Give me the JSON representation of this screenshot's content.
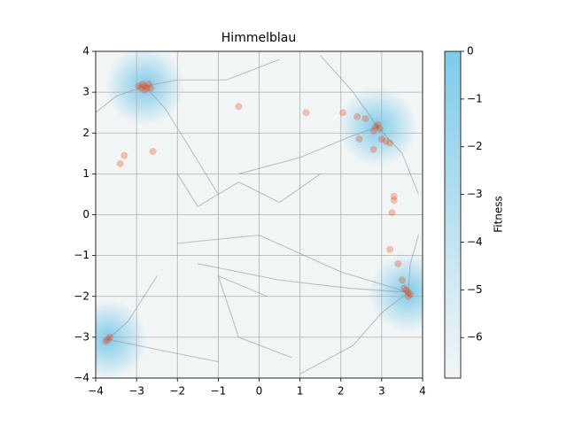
{
  "chart_data": {
    "type": "scatter",
    "title": "Himmelblau",
    "colorbar_label": "Fitness",
    "xlim": [
      -4,
      4
    ],
    "ylim": [
      -4,
      4
    ],
    "xticks": [
      {
        "value": -4,
        "label": "−4"
      },
      {
        "value": -3,
        "label": "−3"
      },
      {
        "value": -2,
        "label": "−2"
      },
      {
        "value": -1,
        "label": "−1"
      },
      0,
      1,
      2,
      3,
      4
    ],
    "yticks": [
      {
        "value": -4,
        "label": "−4"
      },
      {
        "value": -3,
        "label": "−3"
      },
      {
        "value": -2,
        "label": "−2"
      },
      {
        "value": -1,
        "label": "−1"
      },
      0,
      1,
      2,
      3,
      4
    ],
    "grid": true,
    "clim": [
      -6.85,
      0
    ],
    "cticks": [
      0,
      {
        "value": -1,
        "label": "−1"
      },
      {
        "value": -2,
        "label": "−2"
      },
      {
        "value": -3,
        "label": "−3"
      },
      {
        "value": -4,
        "label": "−4"
      },
      {
        "value": -5,
        "label": "−5"
      },
      {
        "value": -6,
        "label": "−6"
      }
    ],
    "colormap": [
      "#f2f5f6",
      "#7fcbe9"
    ],
    "peaks": {
      "x": [
        -2.8,
        2.9,
        3.65,
        -3.7
      ],
      "y": [
        3.15,
        2.15,
        -1.9,
        -3.05
      ],
      "values": [
        0,
        0,
        0,
        0
      ]
    },
    "trajectory_color": "#8a8a8a",
    "trajectories": [
      {
        "x": [
          -1,
          -1.8,
          -2.3,
          -2.8
        ],
        "y": [
          0.5,
          1.8,
          2.6,
          3.15
        ]
      },
      {
        "x": [
          0.5,
          -0.8,
          -2.0,
          -2.8
        ],
        "y": [
          3.8,
          3.3,
          3.3,
          3.15
        ]
      },
      {
        "x": [
          -4,
          -3.5,
          -2.8
        ],
        "y": [
          2.5,
          2.9,
          3.15
        ]
      },
      {
        "x": [
          -0.5,
          1.0,
          2.2,
          2.9
        ],
        "y": [
          1.0,
          1.4,
          1.9,
          2.15
        ]
      },
      {
        "x": [
          1.5,
          2.3,
          2.9
        ],
        "y": [
          3.9,
          3.0,
          2.15
        ]
      },
      {
        "x": [
          3.9,
          3.5,
          2.9
        ],
        "y": [
          0.5,
          1.5,
          2.15
        ]
      },
      {
        "x": [
          -1.5,
          0.5,
          2.2,
          3.65
        ],
        "y": [
          -1.2,
          -1.6,
          -1.8,
          -1.9
        ]
      },
      {
        "x": [
          1.0,
          2.3,
          3.0,
          3.65
        ],
        "y": [
          -3.9,
          -3.2,
          -2.4,
          -1.9
        ]
      },
      {
        "x": [
          -2.0,
          0.0,
          2.0,
          3.65
        ],
        "y": [
          -0.7,
          -0.5,
          -1.4,
          -1.9
        ]
      },
      {
        "x": [
          -2.5,
          -3.2,
          -3.7
        ],
        "y": [
          -1.5,
          -2.6,
          -3.05
        ]
      },
      {
        "x": [
          -1.0,
          -2.5,
          -3.7
        ],
        "y": [
          -3.6,
          -3.3,
          -3.05
        ]
      },
      {
        "x": [
          0.2,
          -1.0,
          -0.5,
          0.8
        ],
        "y": [
          -2.0,
          -1.5,
          -3.0,
          -3.5
        ]
      },
      {
        "x": [
          -2.0,
          -1.5,
          -0.5,
          0.5,
          1.5
        ],
        "y": [
          1.0,
          0.2,
          0.8,
          0.3,
          1.0
        ]
      },
      {
        "x": [
          3.9,
          3.7,
          3.65
        ],
        "y": [
          -0.5,
          -1.2,
          -1.9
        ]
      }
    ],
    "point_color": "#e8400c",
    "points": {
      "x": [
        -2.8,
        -2.75,
        -2.85,
        -2.9,
        -2.7,
        -2.8,
        -2.95,
        -2.65,
        2.85,
        2.9,
        2.95,
        2.8,
        3.0,
        3.1,
        3.2,
        2.8,
        2.6,
        2.4,
        2.45,
        3.65,
        3.6,
        3.7,
        3.55,
        3.65,
        3.5,
        3.4,
        3.2,
        3.3,
        3.3,
        3.25,
        -3.7,
        -3.75,
        -3.65,
        -0.5,
        1.15,
        2.05,
        -3.4,
        -3.3,
        -2.6
      ],
      "y": [
        3.15,
        3.1,
        3.2,
        3.1,
        3.2,
        3.05,
        3.15,
        3.1,
        2.15,
        2.2,
        2.1,
        2.05,
        1.85,
        1.8,
        1.75,
        1.6,
        2.35,
        2.4,
        1.85,
        -1.9,
        -1.85,
        -1.95,
        -1.8,
        -2.0,
        -1.6,
        -1.2,
        -0.85,
        0.45,
        0.35,
        0.05,
        -3.05,
        -3.1,
        -3.0,
        2.65,
        2.5,
        2.5,
        1.25,
        1.45,
        1.55
      ]
    }
  }
}
